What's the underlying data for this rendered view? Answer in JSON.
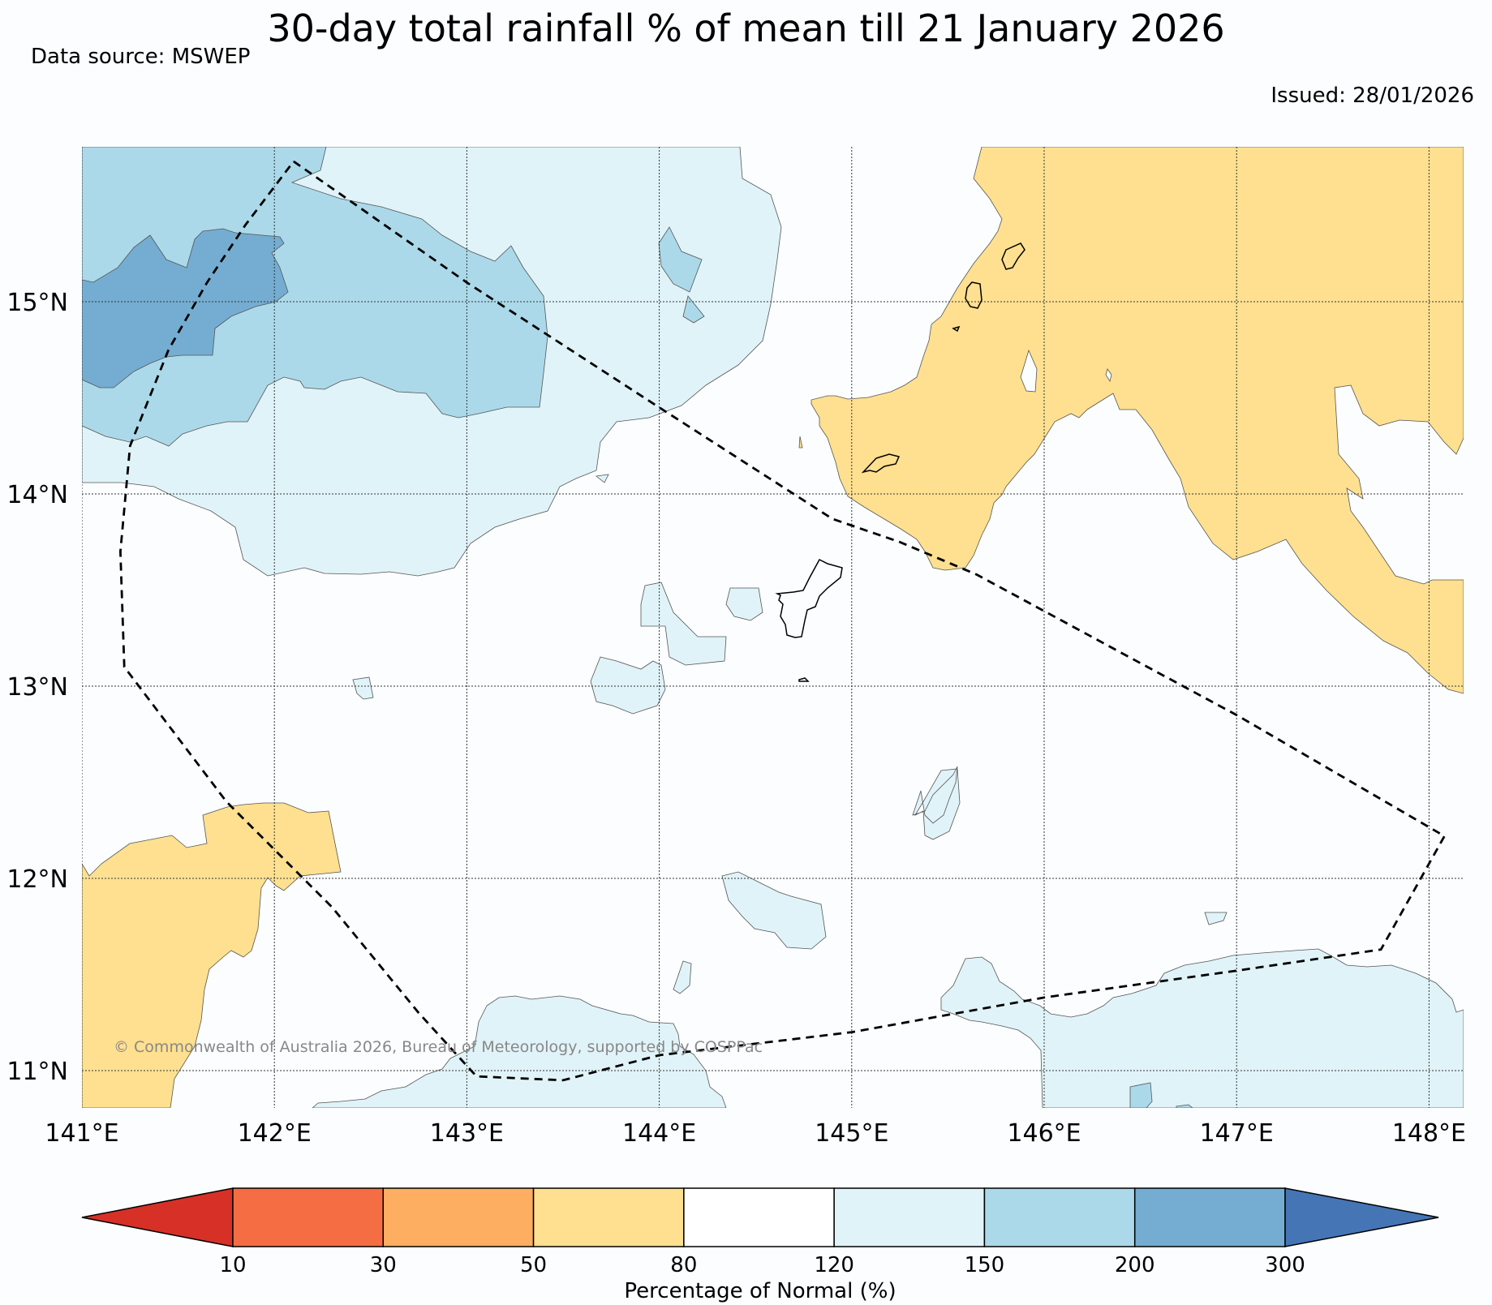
{
  "title": "30-day total rainfall % of mean till 21 January 2026",
  "data_source": "Data source: MSWEP",
  "issued": "Issued: 28/01/2026",
  "copyright": "© Commonwealth of Australia 2026, Bureau of Meteorology, supported by COSPPac",
  "map": {
    "lon_range": [
      141.0,
      148.2
    ],
    "lat_range": [
      10.8,
      15.8
    ],
    "lon_ticks": [
      {
        "value": 141,
        "label": "141°E"
      },
      {
        "value": 142,
        "label": "142°E"
      },
      {
        "value": 143,
        "label": "143°E"
      },
      {
        "value": 144,
        "label": "144°E"
      },
      {
        "value": 145,
        "label": "145°E"
      },
      {
        "value": 146,
        "label": "146°E"
      },
      {
        "value": 147,
        "label": "147°E"
      },
      {
        "value": 148,
        "label": "148°E"
      }
    ],
    "lat_ticks": [
      {
        "value": 15,
        "label": "15°N"
      },
      {
        "value": 14,
        "label": "14°N"
      },
      {
        "value": 13,
        "label": "13°N"
      },
      {
        "value": 12,
        "label": "12°N"
      },
      {
        "value": 11,
        "label": "11°N"
      }
    ],
    "eez_boundary_lonlat": [
      [
        142.1,
        15.73
      ],
      [
        143.0,
        15.1
      ],
      [
        144.0,
        14.45
      ],
      [
        144.9,
        13.87
      ],
      [
        145.25,
        13.75
      ],
      [
        145.65,
        13.58
      ],
      [
        146.5,
        13.12
      ],
      [
        147.0,
        12.85
      ],
      [
        148.08,
        12.22
      ],
      [
        147.75,
        11.63
      ],
      [
        147.0,
        11.52
      ],
      [
        146.0,
        11.38
      ],
      [
        145.0,
        11.2
      ],
      [
        144.0,
        11.08
      ],
      [
        143.5,
        10.95
      ],
      [
        143.05,
        10.97
      ],
      [
        142.75,
        11.3
      ],
      [
        142.3,
        11.85
      ],
      [
        141.75,
        12.4
      ],
      [
        141.22,
        13.1
      ],
      [
        141.2,
        13.7
      ],
      [
        141.25,
        14.25
      ],
      [
        141.45,
        14.75
      ],
      [
        141.65,
        15.1
      ],
      [
        141.85,
        15.4
      ],
      [
        142.1,
        15.73
      ]
    ]
  },
  "colorbar": {
    "title": "Percentage of Normal (%)",
    "boundaries": [
      10,
      30,
      50,
      80,
      120,
      150,
      200,
      300
    ],
    "tick_labels": [
      "10",
      "30",
      "50",
      "80",
      "120",
      "150",
      "200",
      "300"
    ],
    "colors": [
      "#d73027",
      "#f46d43",
      "#fdae61",
      "#fee090",
      "#ffffff",
      "#e0f3f8",
      "#abd9e9",
      "#74add1",
      "#4575b4"
    ]
  }
}
